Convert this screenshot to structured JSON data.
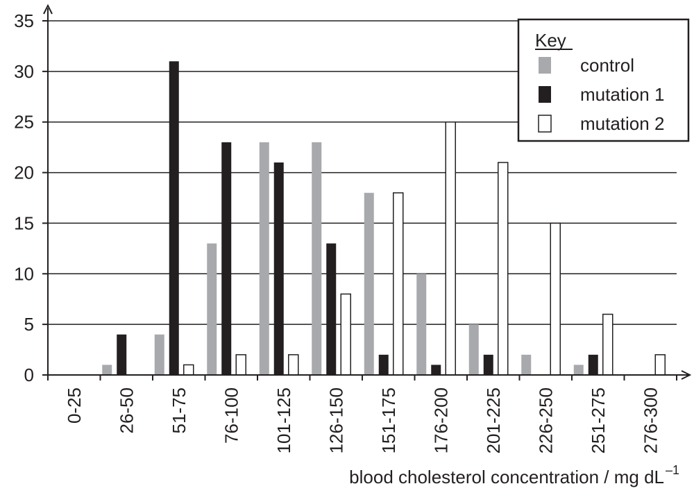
{
  "chart_data": {
    "type": "bar",
    "categories": [
      "0-25",
      "26-50",
      "51-75",
      "76-100",
      "101-125",
      "126-150",
      "151-175",
      "176-200",
      "201-225",
      "226-250",
      "251-275",
      "276-300"
    ],
    "series": [
      {
        "name": "control",
        "color": "#a7a9ac",
        "values": [
          0,
          1,
          4,
          13,
          23,
          23,
          18,
          10,
          5,
          2,
          1,
          0
        ]
      },
      {
        "name": "mutation 1",
        "color": "#231f20",
        "values": [
          0,
          4,
          31,
          23,
          21,
          13,
          2,
          1,
          2,
          0,
          2,
          0
        ]
      },
      {
        "name": "mutation 2",
        "color": "#ffffff",
        "values": [
          0,
          0,
          1,
          2,
          2,
          8,
          18,
          25,
          21,
          15,
          6,
          2
        ]
      }
    ],
    "yticks": [
      "0",
      "5",
      "10",
      "15",
      "20",
      "25",
      "30",
      "35"
    ],
    "ylim": [
      0,
      35
    ],
    "grid": true,
    "legend": {
      "title": "Key",
      "position": "top-right"
    },
    "xlabel": "blood cholesterol concentration / mg dL",
    "xlabel_superscript": "–1"
  }
}
